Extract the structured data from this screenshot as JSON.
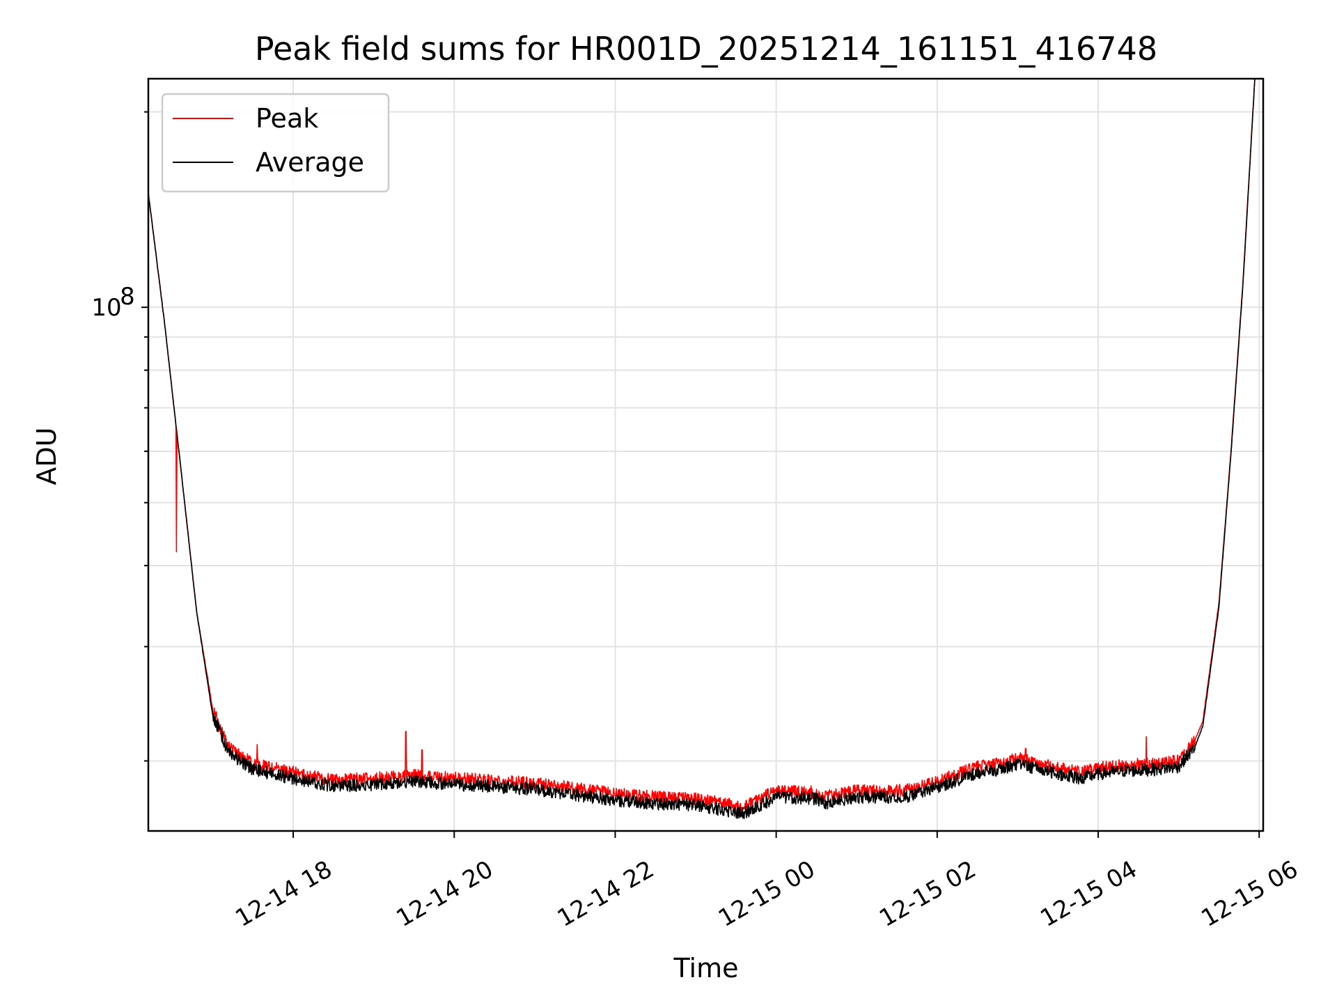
{
  "chart_data": {
    "type": "line",
    "title": "Peak field sums for HR001D_20251214_161151_416748",
    "xlabel": "Time",
    "ylabel": "ADU",
    "yscale": "log",
    "ylim": [
      15600000,
      225000000
    ],
    "xlim_hours": [
      16.2,
      30.05
    ],
    "x_tick_labels": [
      "12-14 18",
      "12-14 20",
      "12-14 22",
      "12-15 00",
      "12-15 02",
      "12-15 04",
      "12-15 06"
    ],
    "x_tick_hours": [
      18,
      20,
      22,
      24,
      26,
      28,
      30
    ],
    "y_major_tick": {
      "base": "10",
      "exponent": "8",
      "value": 100000000
    },
    "legend": {
      "position": "top-left",
      "entries": [
        "Peak",
        "Average"
      ]
    },
    "series": [
      {
        "name": "Peak",
        "color": "#ff0000",
        "baseline_hours": [
          16.2,
          16.4,
          16.6,
          16.8,
          17.0,
          17.2,
          17.5,
          18.0,
          18.5,
          19.0,
          19.5,
          20.0,
          21.0,
          22.0,
          22.5,
          23.0,
          23.6,
          24.0,
          24.5,
          24.6,
          25.0,
          25.6,
          26.0,
          26.5,
          26.8,
          27.0,
          27.5,
          27.8,
          28.0,
          28.3,
          28.7,
          29.0,
          29.2,
          29.3,
          29.5,
          29.65,
          29.8,
          29.9,
          29.95
        ],
        "baseline_values": [
          150000000,
          95000000,
          57000000,
          34000000,
          24000000,
          21000000,
          19800000,
          19200000,
          18700000,
          18800000,
          19000000,
          18800000,
          18500000,
          17800000,
          17600000,
          17500000,
          17000000,
          18000000,
          17900000,
          17600000,
          18000000,
          18000000,
          18600000,
          19600000,
          19800000,
          20200000,
          19500000,
          19200000,
          19500000,
          19700000,
          19800000,
          20000000,
          21500000,
          23000000,
          35000000,
          60000000,
          110000000,
          180000000,
          230000000
        ],
        "spikes": [
          {
            "hour": 16.55,
            "value": 42000000
          },
          {
            "hour": 17.55,
            "value": 21200000
          },
          {
            "hour": 19.4,
            "value": 22200000
          },
          {
            "hour": 19.6,
            "value": 20800000
          },
          {
            "hour": 27.1,
            "value": 20900000
          },
          {
            "hour": 28.6,
            "value": 21800000
          }
        ]
      },
      {
        "name": "Average",
        "color": "#000000",
        "baseline_hours": [
          16.2,
          16.4,
          16.6,
          16.8,
          17.0,
          17.2,
          17.5,
          18.0,
          18.5,
          19.0,
          19.5,
          20.0,
          21.0,
          22.0,
          22.5,
          23.0,
          23.6,
          24.0,
          24.5,
          24.6,
          25.0,
          25.6,
          26.0,
          26.5,
          26.8,
          27.0,
          27.5,
          27.8,
          28.0,
          28.3,
          28.7,
          29.0,
          29.2,
          29.3,
          29.5,
          29.65,
          29.8,
          29.9,
          29.95
        ],
        "baseline_values": [
          150000000,
          95000000,
          57000000,
          34000000,
          23500000,
          20600000,
          19400000,
          18800000,
          18300000,
          18400000,
          18600000,
          18400000,
          18100000,
          17400000,
          17200000,
          17100000,
          16600000,
          17600000,
          17500000,
          17200000,
          17600000,
          17600000,
          18200000,
          19200000,
          19400000,
          19800000,
          19100000,
          18800000,
          19100000,
          19300000,
          19400000,
          19600000,
          21000000,
          22600000,
          34500000,
          59500000,
          109000000,
          179000000,
          229000000
        ]
      }
    ]
  },
  "colors": {
    "peak": "#ff0000",
    "average": "#000000",
    "grid": "#e3e3e3",
    "frame": "#000000"
  }
}
